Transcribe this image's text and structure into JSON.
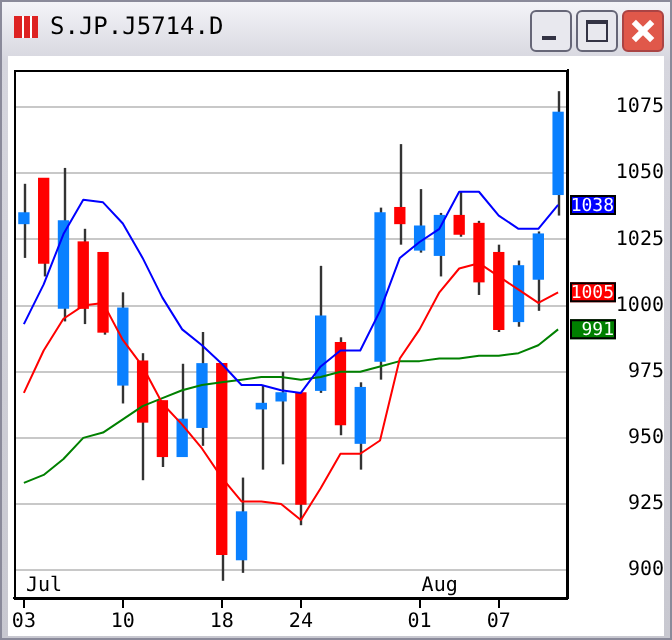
{
  "chart_data": {
    "type": "candlestick",
    "title": "S.JP.J5714.D",
    "categories": [
      "03",
      null,
      null,
      null,
      null,
      "10",
      null,
      null,
      null,
      null,
      "18",
      null,
      null,
      null,
      "24",
      null,
      null,
      null,
      null,
      null,
      "01",
      null,
      null,
      null,
      "07",
      null,
      null,
      null
    ],
    "ohlc": [
      [
        1031,
        1046,
        1018,
        1035
      ],
      [
        1048,
        1048,
        1011,
        1016
      ],
      [
        999,
        1052,
        994,
        1032
      ],
      [
        1024,
        1029,
        993,
        999
      ],
      [
        1020,
        1020,
        989,
        990
      ],
      [
        970,
        1005,
        963,
        999
      ],
      [
        979,
        982,
        934,
        956
      ],
      [
        964,
        964,
        939,
        943
      ],
      [
        943,
        978,
        943,
        957
      ],
      [
        954,
        990,
        947,
        978
      ],
      [
        978,
        978,
        896,
        906
      ],
      [
        904,
        935,
        899,
        922
      ],
      [
        961,
        970,
        938,
        963
      ],
      [
        964,
        975,
        940,
        967
      ],
      [
        967,
        967,
        917,
        925
      ],
      [
        968,
        1015,
        967,
        996
      ],
      [
        986,
        988,
        951,
        955
      ],
      [
        948,
        971,
        938,
        969
      ],
      [
        979,
        1037,
        972,
        1035
      ],
      [
        1037,
        1061,
        1023,
        1031
      ],
      [
        1021,
        1044,
        1020,
        1030
      ],
      [
        1019,
        1035,
        1011,
        1034
      ],
      [
        1034,
        1043,
        1026,
        1027
      ],
      [
        1031,
        1032,
        1004,
        1009
      ],
      [
        1020,
        1023,
        990,
        991
      ],
      [
        994,
        1017,
        992,
        1015
      ],
      [
        1010,
        1028,
        998,
        1027
      ],
      [
        1042,
        1081,
        1034,
        1073
      ]
    ],
    "colors": [
      "#0a80ff",
      "#ff0000",
      "#0a80ff",
      "#ff0000",
      "#ff0000",
      "#0a80ff",
      "#ff0000",
      "#ff0000",
      "#0a80ff",
      "#0a80ff",
      "#ff0000",
      "#0a80ff",
      "#0a80ff",
      "#0a80ff",
      "#ff0000",
      "#0a80ff",
      "#ff0000",
      "#0a80ff",
      "#0a80ff",
      "#ff0000",
      "#0a80ff",
      "#0a80ff",
      "#ff0000",
      "#ff0000",
      "#ff0000",
      "#0a80ff",
      "#0a80ff",
      "#0a80ff"
    ],
    "series": [
      {
        "type": "line",
        "color": "#0000ff",
        "values": [
          993,
          1008,
          1027,
          1040,
          1039,
          1031,
          1018,
          1003,
          991,
          985,
          978,
          970,
          970,
          968,
          967,
          977,
          983,
          983,
          998,
          1018,
          1024,
          1029,
          1043,
          1043,
          1034,
          1029,
          1029,
          1038
        ],
        "value_labels": [
          null,
          null,
          null,
          null,
          null,
          null,
          null,
          null,
          null,
          null,
          null,
          null,
          null,
          null,
          null,
          null,
          null,
          null,
          null,
          null,
          null,
          null,
          null,
          null,
          null,
          null,
          null,
          "1038"
        ]
      },
      {
        "type": "line",
        "color": "#ff0000",
        "values": [
          967,
          983,
          995,
          1000,
          1001,
          987,
          977,
          963,
          955,
          946,
          935,
          926,
          926,
          925,
          919,
          931,
          944,
          944,
          949,
          980,
          991,
          1005,
          1014,
          1016,
          1011,
          1006,
          1001,
          1005
        ],
        "value_labels": [
          null,
          null,
          null,
          null,
          null,
          null,
          null,
          null,
          null,
          null,
          null,
          null,
          null,
          null,
          null,
          null,
          null,
          null,
          null,
          null,
          null,
          null,
          null,
          null,
          null,
          null,
          null,
          "1005"
        ]
      },
      {
        "type": "line",
        "color": "#008000",
        "values": [
          933,
          936,
          942,
          950,
          952,
          957,
          962,
          965,
          968,
          970,
          971,
          972,
          973,
          973,
          972,
          973,
          975,
          975,
          977,
          979,
          979,
          980,
          980,
          981,
          981,
          982,
          985,
          991
        ],
        "value_labels": [
          null,
          null,
          null,
          null,
          null,
          null,
          null,
          null,
          null,
          null,
          null,
          null,
          null,
          null,
          null,
          null,
          null,
          null,
          null,
          null,
          null,
          null,
          null,
          null,
          null,
          null,
          null,
          "991"
        ]
      }
    ],
    "ylim": [
      889.5,
      1089
    ],
    "yticks": [
      900,
      925,
      950,
      975,
      1000,
      1025,
      1050,
      1075
    ],
    "grid": "y",
    "annotations": [
      "Jul",
      "Aug"
    ]
  }
}
